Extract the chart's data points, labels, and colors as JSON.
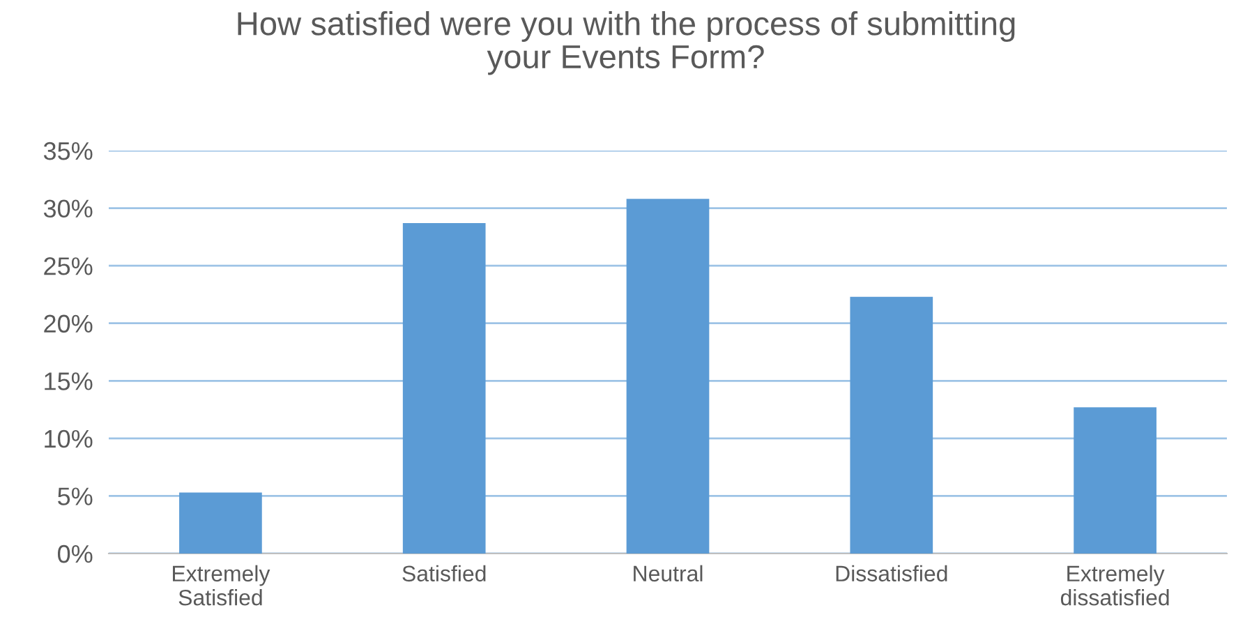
{
  "chart_data": {
    "type": "bar",
    "title": "How satisfied were you with the process of submitting\nyour Events Form?",
    "categories": [
      "Extremely\nSatisfied",
      "Satisfied",
      "Neutral",
      "Dissatisfied",
      "Extremely\ndissatisfied"
    ],
    "values": [
      5.3,
      28.7,
      30.8,
      22.3,
      12.7
    ],
    "color": "#5b9bd5",
    "ylim": [
      0,
      35
    ],
    "yticks": [
      {
        "value": 0,
        "label": "0%"
      },
      {
        "value": 5,
        "label": "5%"
      },
      {
        "value": 10,
        "label": "10%"
      },
      {
        "value": 15,
        "label": "15%"
      },
      {
        "value": 20,
        "label": "20%"
      },
      {
        "value": 25,
        "label": "25%"
      },
      {
        "value": 30,
        "label": "30%"
      },
      {
        "value": 35,
        "label": "35%"
      }
    ],
    "grid": "y",
    "legend": false
  }
}
